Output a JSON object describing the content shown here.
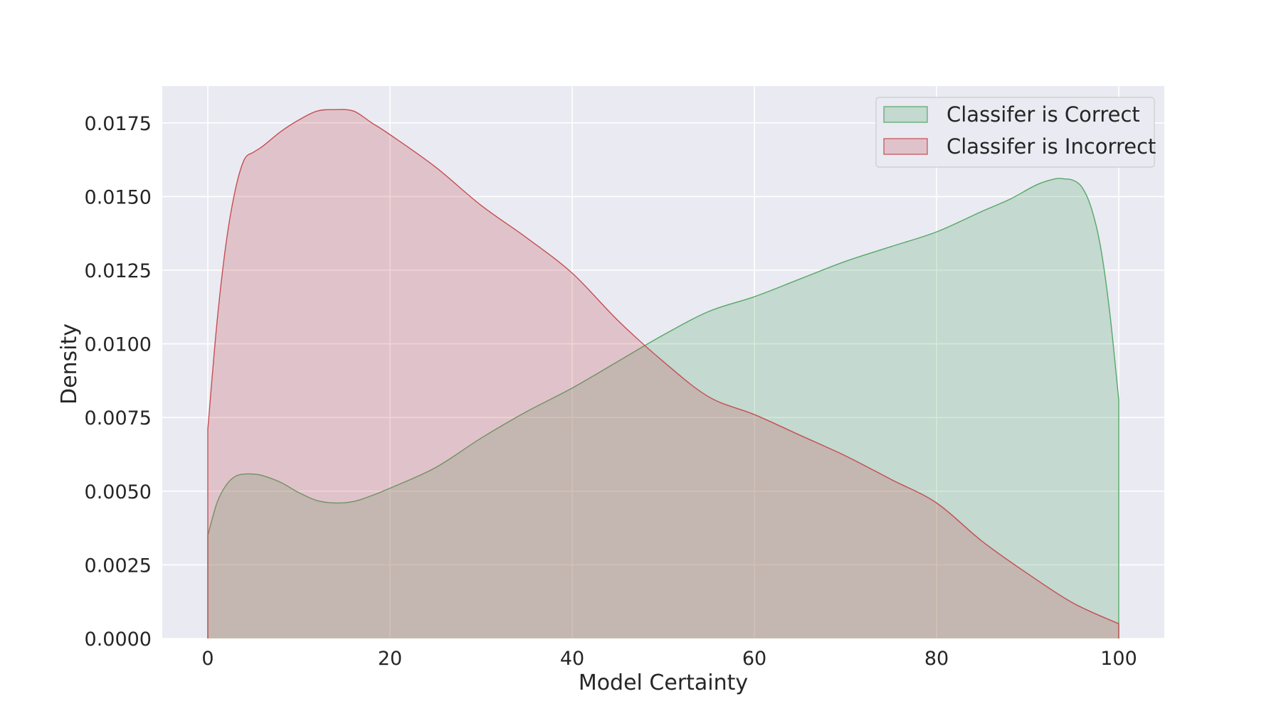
{
  "chart_data": {
    "type": "area",
    "title": "",
    "xlabel": "Model Certainty",
    "ylabel": "Density",
    "xlim": [
      -5,
      105
    ],
    "ylim": [
      0,
      0.01875
    ],
    "xticks": [
      0,
      20,
      40,
      60,
      80,
      100
    ],
    "xtick_labels": [
      "0",
      "20",
      "40",
      "60",
      "80",
      "100"
    ],
    "yticks": [
      0,
      0.0025,
      0.005,
      0.0075,
      0.01,
      0.0125,
      0.015,
      0.0175
    ],
    "ytick_labels": [
      "0.0000",
      "0.0025",
      "0.0050",
      "0.0075",
      "0.0100",
      "0.0125",
      "0.0150",
      "0.0175"
    ],
    "grid": true,
    "legend_position": "top-right",
    "series": [
      {
        "name": "Classifer is Correct",
        "color": "#55a868",
        "fill_opacity": 0.25,
        "x": [
          0,
          1,
          2,
          3,
          4,
          5,
          6,
          8,
          10,
          12,
          14,
          16,
          18,
          20,
          25,
          30,
          35,
          40,
          45,
          50,
          55,
          60,
          65,
          70,
          75,
          80,
          85,
          88,
          91,
          93,
          94,
          95,
          96,
          97,
          98,
          99,
          100
        ],
        "y": [
          0.0035,
          0.0046,
          0.0052,
          0.0055,
          0.00558,
          0.00558,
          0.00553,
          0.0053,
          0.00495,
          0.00468,
          0.0046,
          0.00465,
          0.00485,
          0.0051,
          0.0058,
          0.0068,
          0.0077,
          0.0085,
          0.0094,
          0.0103,
          0.0111,
          0.0116,
          0.0122,
          0.0128,
          0.0133,
          0.0138,
          0.0145,
          0.0149,
          0.0154,
          0.0156,
          0.0156,
          0.01555,
          0.0153,
          0.0146,
          0.0133,
          0.0111,
          0.0081
        ]
      },
      {
        "name": "Classifer is Incorrect",
        "color": "#c44e52",
        "fill_opacity": 0.25,
        "x": [
          0,
          1,
          2,
          3,
          4,
          5,
          6,
          8,
          10,
          12,
          14,
          16,
          18,
          20,
          25,
          30,
          35,
          40,
          45,
          50,
          55,
          60,
          65,
          70,
          75,
          80,
          85,
          90,
          95,
          100
        ],
        "y": [
          0.0071,
          0.0107,
          0.0134,
          0.0152,
          0.01625,
          0.0165,
          0.0167,
          0.0172,
          0.0176,
          0.0179,
          0.01795,
          0.0179,
          0.0175,
          0.0171,
          0.016,
          0.0147,
          0.0136,
          0.0124,
          0.0108,
          0.0094,
          0.0082,
          0.0076,
          0.0069,
          0.0062,
          0.0054,
          0.0046,
          0.0033,
          0.0022,
          0.0012,
          0.0005
        ]
      }
    ]
  }
}
